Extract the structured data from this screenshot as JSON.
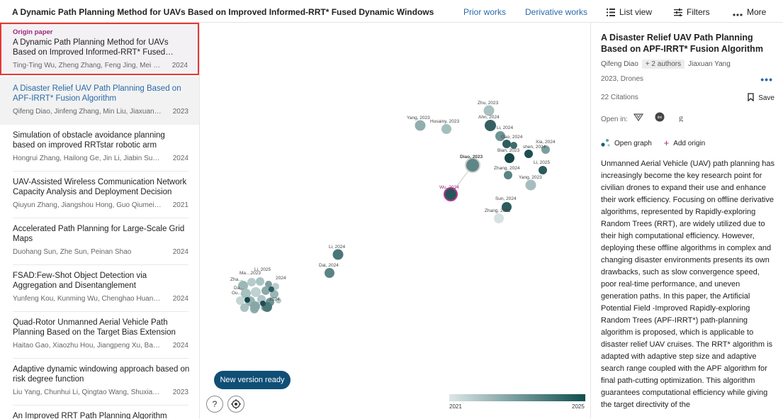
{
  "topbar": {
    "title": "A Dynamic Path Planning Method for UAVs Based on Improved Informed-RRT* Fused Dynamic Windows",
    "prior_works": "Prior works",
    "derivative_works": "Derivative works",
    "list_view": "List view",
    "filters": "Filters",
    "more": "More"
  },
  "list": {
    "origin": {
      "tag": "Origin paper",
      "title": "A Dynamic Path Planning Method for UAVs Based on Improved Informed-RRT* Fused…",
      "authors": "Ting-Ting Wu, Zheng Zhang, Feng Jing, Mei Gao",
      "year": "2024"
    },
    "papers": [
      {
        "title": "A Disaster Relief UAV Path Planning Based on APF-IRRT* Fusion Algorithm",
        "authors": "Qifeng Diao, Jinfeng Zhang, Min Liu, Jiaxuan Yang",
        "year": "2023"
      },
      {
        "title": "Simulation of obstacle avoidance planning based on improved RRTstar robotic arm",
        "authors": "Hongrui Zhang, Hailong Ge, Jin Li, Jiabin Sun,…",
        "year": "2024"
      },
      {
        "title": "UAV-Assisted Wireless Communication Network Capacity Analysis and Deployment Decision",
        "authors": "Qiuyun Zhang, Jiangshou Hong, Guo Qiumei, Jie…",
        "year": "2021"
      },
      {
        "title": "Accelerated Path Planning for Large-Scale Grid Maps",
        "authors": "Duohang Sun, Zhe Sun, Peinan Shao",
        "year": "2024"
      },
      {
        "title": "FSAD:Few-Shot Object Detection via Aggregation and Disentanglement",
        "authors": "Yunfeng Kou, Kunming Wu, Chenghao Huang, Hu…",
        "year": "2024"
      },
      {
        "title": "Quad-Rotor Unmanned Aerial Vehicle Path Planning Based on the Target Bias Extension a…",
        "authors": "Haitao Gao, Xiaozhu Hou, Jiangpeng Xu, Banggui…",
        "year": "2024"
      },
      {
        "title": "Adaptive dynamic windowing approach based on risk degree function",
        "authors": "Liu Yang, Chunhui Li, Qingtao Wang, Shuxian Shi,…",
        "year": "2023"
      },
      {
        "title": "An Improved RRT Path Planning Algorithm Based…",
        "authors": "",
        "year": ""
      }
    ]
  },
  "graph": {
    "new_version": "New version ready",
    "help": "?",
    "legend_start": "2021",
    "legend_end": "2025",
    "labels": {
      "zhu": "Zhu, 2023",
      "yang1": "Yang, 2023",
      "husainy": "Husainy, 2023",
      "ahn": "Ahn, 2024",
      "li1": "Li, 2024",
      "gao": "Gao, 2024",
      "xia": "Xia, 2024",
      "shen": "shen, 2024",
      "bian": "Bian, 2023",
      "diao": "Diao, 2023",
      "li2": "Li, 2025",
      "zhang1": "Zhang, 2024",
      "yang2": "Yang, 2023",
      "wu": "Wu, 2024",
      "sun": "Sun, 2024",
      "zhang2": "Zhang, 2021",
      "li3": "Li, 2024",
      "dai": "Dai, 2024",
      "c1": "Li, 2025",
      "c2": "Ma…2023",
      "c3": "2024",
      "c4": "Zha…",
      "c5": "Da…",
      "c6": "Gu…",
      "c7": "2024"
    }
  },
  "detail": {
    "title": "A Disaster Relief UAV Path Planning Based on APF-IRRT* Fusion Algorithm",
    "first_author": "Qifeng Diao",
    "more_authors": "+ 2 authors",
    "last_author": "Jiaxuan Yang",
    "venue": "2023, Drones",
    "dots": "•••",
    "citations": "22 Citations",
    "save": "Save",
    "open_in": "Open in:",
    "open_graph": "Open graph",
    "add_origin": "Add origin",
    "abstract": "Unmanned Aerial Vehicle (UAV) path planning has increasingly become the key research point for civilian drones to expand their use and enhance their work efficiency. Focusing on offline derivative algorithms, represented by Rapidly-exploring Random Trees (RRT), are widely utilized due to their high computational efficiency. However, deploying these offline algorithms in complex and changing disaster environments presents its own drawbacks, such as slow convergence speed, poor real-time performance, and uneven generation paths. In this paper, the Artificial Potential Field -Improved Rapidly-exploring Random Trees (APF-IRRT*) path-planning algorithm is proposed, which is applicable to disaster relief UAV cruises. The RRT* algorithm is adapted with adaptive step size and adaptive search range coupled with the APF algorithm for final path-cutting optimization. This algorithm guarantees computational efficiency while giving the target directivity of the"
  },
  "colors": {
    "accent": "#2b6aa8",
    "origin_border": "#e53935",
    "origin_tag": "#9c2a7a",
    "button": "#0f4f76"
  }
}
